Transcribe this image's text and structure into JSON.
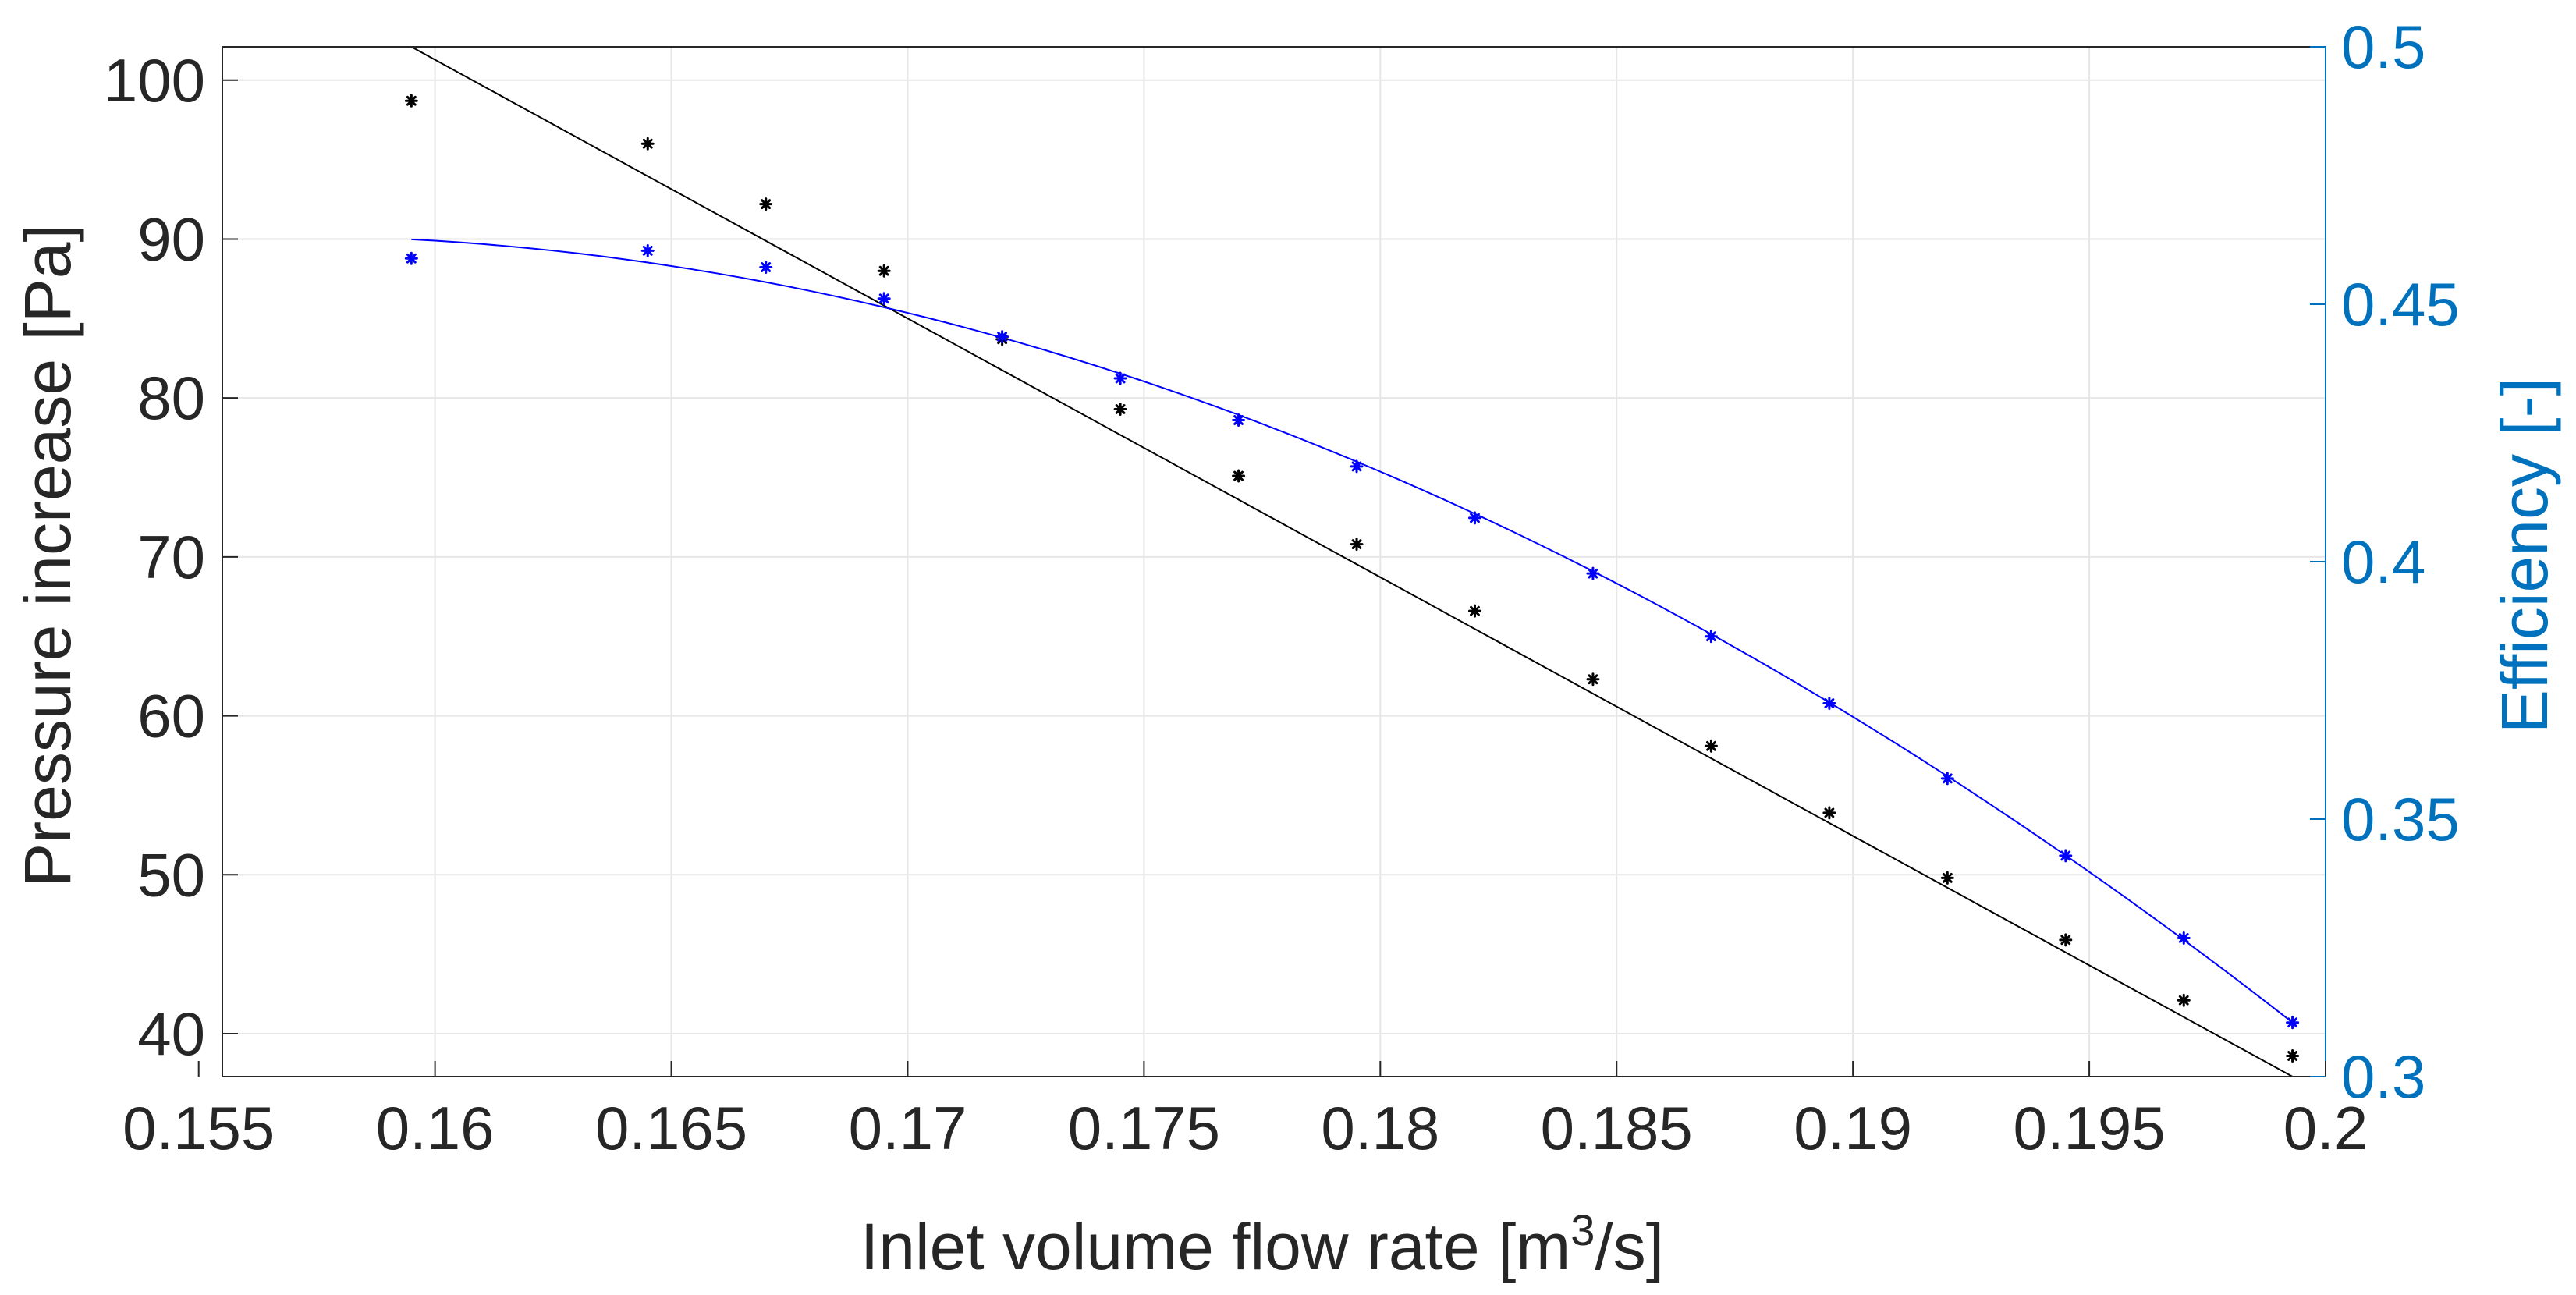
{
  "chart_data": {
    "type": "scatter",
    "x_axis": {
      "label_prefix": "Inlet volume flow rate [m",
      "label_sup": "3",
      "label_suffix": "/s]",
      "range": [
        0.1555,
        0.2
      ],
      "ticks": [
        0.155,
        0.16,
        0.165,
        0.17,
        0.175,
        0.18,
        0.185,
        0.19,
        0.195,
        0.2
      ],
      "tick_labels": [
        "0.155",
        "0.16",
        "0.165",
        "0.17",
        "0.175",
        "0.18",
        "0.185",
        "0.19",
        "0.195",
        "0.2"
      ]
    },
    "y_left_axis": {
      "label": "Pressure increase [Pa]",
      "range": [
        37.3,
        102.1
      ],
      "ticks": [
        40,
        50,
        60,
        70,
        80,
        90,
        100
      ],
      "tick_labels": [
        "40",
        "50",
        "60",
        "70",
        "80",
        "90",
        "100"
      ],
      "color": "#000000"
    },
    "y_right_axis": {
      "label": "Efficiency [-]",
      "range": [
        0.3,
        0.5
      ],
      "ticks": [
        0.3,
        0.35,
        0.4,
        0.45,
        0.5
      ],
      "tick_labels": [
        "0.3",
        "0.35",
        "0.4",
        "0.45",
        "0.5"
      ],
      "color": "#0072BD"
    },
    "grid": true,
    "series": [
      {
        "name": "Pressure increase",
        "axis": "left",
        "color": "#000000",
        "marker": "*",
        "x": [
          0.1595,
          0.1645,
          0.167,
          0.1695,
          0.172,
          0.1745,
          0.177,
          0.1795,
          0.182,
          0.1845,
          0.187,
          0.1895,
          0.192,
          0.1945,
          0.197,
          0.1993
        ],
        "y": [
          98.7,
          96.0,
          92.2,
          88.0,
          83.7,
          79.3,
          75.1,
          70.8,
          66.6,
          62.3,
          58.1,
          53.9,
          49.8,
          45.9,
          42.1,
          38.6
        ],
        "fit": {
          "kind": "linear",
          "x": [
            0.1595,
            0.1993
          ],
          "y": [
            102.1,
            37.3
          ]
        }
      },
      {
        "name": "Efficiency",
        "axis": "right",
        "color": "#0000FF",
        "marker": "*",
        "x": [
          0.1595,
          0.1645,
          0.167,
          0.1695,
          0.172,
          0.1745,
          0.177,
          0.1795,
          0.182,
          0.1845,
          0.187,
          0.1895,
          0.192,
          0.1945,
          0.197,
          0.1993
        ],
        "y": [
          0.4589,
          0.4604,
          0.4572,
          0.4511,
          0.4437,
          0.4356,
          0.4275,
          0.4185,
          0.4085,
          0.3977,
          0.3855,
          0.3725,
          0.3579,
          0.3429,
          0.3269,
          0.3105
        ],
        "fit": {
          "kind": "quadratic",
          "x": [
            0.1595,
            0.172,
            0.1993
          ],
          "y": [
            0.4626,
            0.4435,
            0.3105
          ]
        }
      }
    ]
  }
}
